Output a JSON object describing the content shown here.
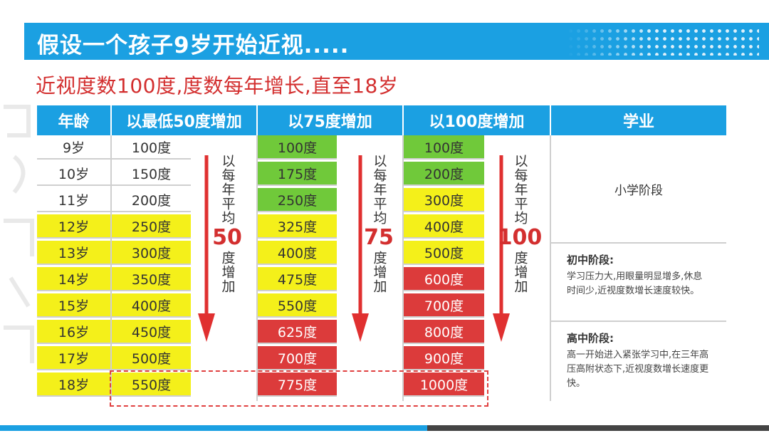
{
  "title": "假设一个孩子9岁开始近视.....",
  "subtitle": "近视度数100度,度数每年增长,直至18岁",
  "headers": [
    "年龄",
    "以最低50度增加",
    "以75度增加",
    "以100度增加",
    "学业"
  ],
  "rows": [
    {
      "age": "9岁",
      "v50": "100度",
      "v75": "100度",
      "v100": "100度"
    },
    {
      "age": "10岁",
      "v50": "150度",
      "v75": "175度",
      "v100": "200度"
    },
    {
      "age": "11岁",
      "v50": "200度",
      "v75": "250度",
      "v100": "300度"
    },
    {
      "age": "12岁",
      "v50": "250度",
      "v75": "325度",
      "v100": "400度"
    },
    {
      "age": "13岁",
      "v50": "300度",
      "v75": "400度",
      "v100": "500度"
    },
    {
      "age": "14岁",
      "v50": "350度",
      "v75": "475度",
      "v100": "600度"
    },
    {
      "age": "15岁",
      "v50": "400度",
      "v75": "550度",
      "v100": "700度"
    },
    {
      "age": "16岁",
      "v50": "450度",
      "v75": "625度",
      "v100": "800度"
    },
    {
      "age": "17岁",
      "v50": "500度",
      "v75": "700度",
      "v100": "900度"
    },
    {
      "age": "18岁",
      "v50": "550度",
      "v75": "775度",
      "v100": "1000度"
    }
  ],
  "arrows": [
    {
      "top": "以每年平均",
      "num": "50",
      "bottom": "度增加"
    },
    {
      "top": "以每年平均",
      "num": "75",
      "bottom": "度增加"
    },
    {
      "top": "以每年平均",
      "num": "100",
      "bottom": "度增加"
    }
  ],
  "school": {
    "primary": "小学阶段",
    "middle_title": "初中阶段:",
    "middle_desc": "学习压力大,用眼量明显增多,休息时间少,近视度数增长速度较快。",
    "high_title": "高中阶段:",
    "high_desc": "高一开始进入紧张学习中,在三年高压高附状态下,近视度数增长速度更快。"
  },
  "colors": {
    "header_blue": "#1ba0e2",
    "yellow": "#f4f01a",
    "green": "#70c93a",
    "red": "#dc3b3b",
    "title_red": "#d32f2f"
  }
}
